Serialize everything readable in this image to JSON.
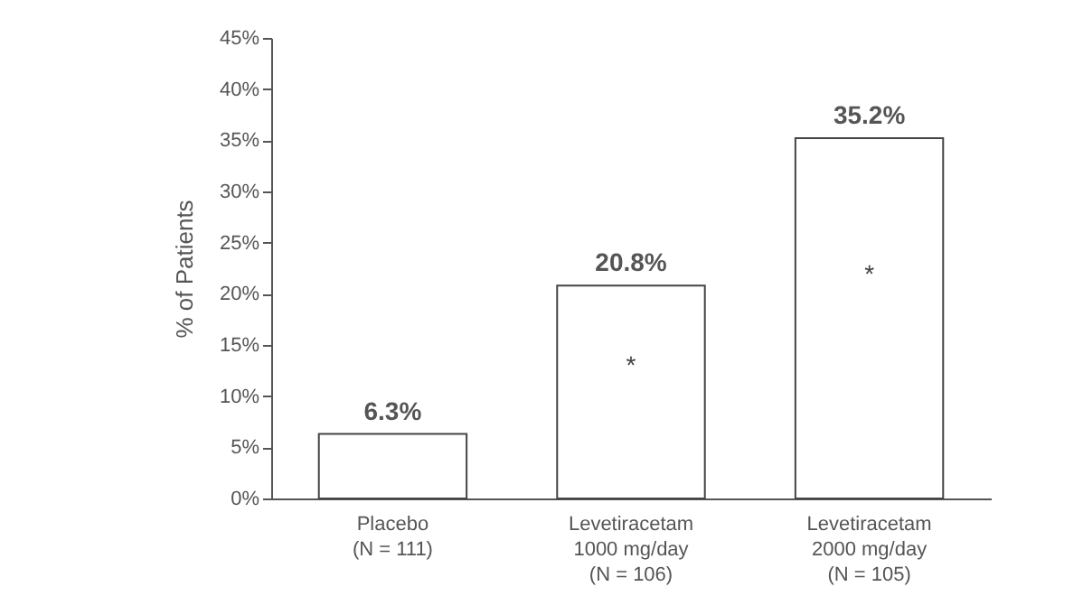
{
  "chart_data": {
    "type": "bar",
    "ylabel": "% of Patients",
    "categories": [
      "Placebo\n(N = 111)",
      "Levetiracetam\n1000 mg/day\n(N = 106)",
      "Levetiracetam\n2000 mg/day\n(N = 105)"
    ],
    "values": [
      6.3,
      20.8,
      35.2
    ],
    "value_labels": [
      "6.3%",
      "20.8%",
      "35.2%"
    ],
    "color": "#ffffff",
    "ylim": [
      0,
      45
    ],
    "yticks": [
      {
        "value": 0,
        "label": "0%"
      },
      {
        "value": 5,
        "label": "5%"
      },
      {
        "value": 10,
        "label": "10%"
      },
      {
        "value": 15,
        "label": "15%"
      },
      {
        "value": 20,
        "label": "20%"
      },
      {
        "value": 25,
        "label": "25%"
      },
      {
        "value": 30,
        "label": "30%"
      },
      {
        "value": 35,
        "label": "35%"
      },
      {
        "value": 40,
        "label": "40%"
      },
      {
        "value": 45,
        "label": "45%"
      }
    ],
    "annotations": [
      "*",
      "*"
    ],
    "grid": false
  }
}
